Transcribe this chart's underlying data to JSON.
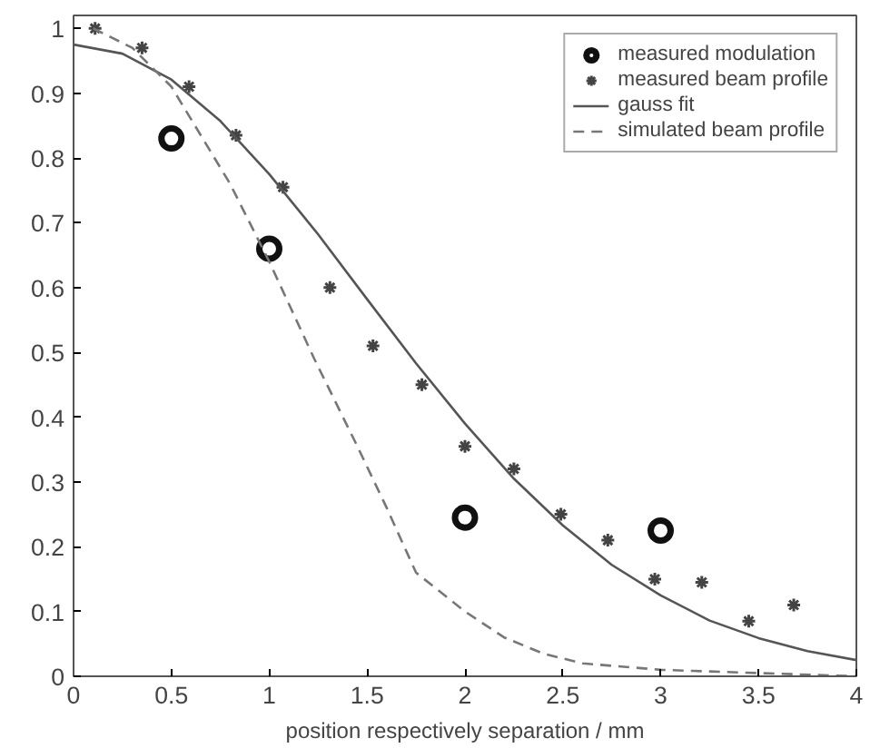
{
  "chart_data": {
    "type": "line",
    "xlabel": "position respectively separation / mm",
    "xlim": [
      0,
      4
    ],
    "ylim": [
      0,
      1.02
    ],
    "xticks": [
      0,
      0.5,
      1,
      1.5,
      2,
      2.5,
      3,
      3.5,
      4
    ],
    "yticks": [
      0,
      0.1,
      0.2,
      0.3,
      0.4,
      0.5,
      0.6,
      0.7,
      0.8,
      0.9,
      1
    ],
    "grid": false,
    "legend": "top right",
    "series": [
      {
        "name": "measured modulation",
        "type": "scatter",
        "marker": "circle",
        "color": "#111111",
        "x": [
          0.5,
          1,
          2,
          3
        ],
        "values": [
          0.83,
          0.66,
          0.245,
          0.225
        ]
      },
      {
        "name": "measured beam profile",
        "type": "scatter",
        "marker": "cross",
        "color": "#444444",
        "x": [
          0.11,
          0.35,
          0.59,
          0.83,
          1.07,
          1.31,
          1.53,
          1.78,
          2.0,
          2.25,
          2.49,
          2.73,
          2.97,
          3.21,
          3.45,
          3.68
        ],
        "values": [
          1.0,
          0.97,
          0.91,
          0.835,
          0.755,
          0.6,
          0.51,
          0.45,
          0.355,
          0.32,
          0.25,
          0.21,
          0.15,
          0.145,
          0.085,
          0.11
        ]
      },
      {
        "name": "gauss fit",
        "line_style": "solid",
        "color": "#555555",
        "x": [
          0,
          0.25,
          0.5,
          0.75,
          1,
          1.25,
          1.5,
          1.75,
          2,
          2.25,
          2.5,
          2.75,
          3,
          3.25,
          3.5,
          3.75,
          4
        ],
        "values": [
          0.975,
          0.961,
          0.921,
          0.857,
          0.775,
          0.682,
          0.582,
          0.483,
          0.39,
          0.305,
          0.233,
          0.172,
          0.125,
          0.086,
          0.059,
          0.039,
          0.025
        ]
      },
      {
        "name": "simulated beam profile",
        "line_style": "dashed",
        "color": "#777777",
        "x": [
          0.1,
          0.3,
          0.5,
          0.62,
          0.8,
          1.0,
          1.23,
          1.45,
          1.6,
          1.75,
          2.0,
          2.2,
          2.4,
          2.6,
          3.0,
          3.5,
          4.0
        ],
        "values": [
          1.0,
          0.97,
          0.91,
          0.85,
          0.76,
          0.64,
          0.49,
          0.355,
          0.26,
          0.16,
          0.1,
          0.06,
          0.035,
          0.02,
          0.01,
          0.005,
          0.0
        ]
      }
    ]
  }
}
